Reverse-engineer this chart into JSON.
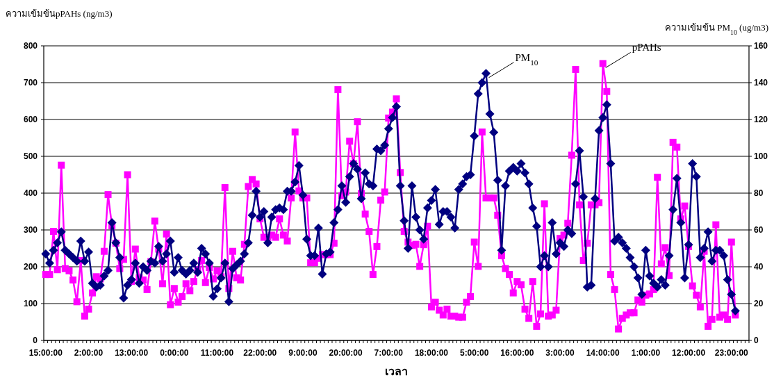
{
  "chart_data": {
    "type": "line",
    "ylabel": "ความเข้มข้นpPAHs (ng/m3)",
    "y2label": "ความเข้มข้น PM$_{10}$ (ug/m3)",
    "xlabel": "เวลา",
    "categories": [
      "15:00:00",
      null,
      null,
      null,
      null,
      null,
      null,
      null,
      null,
      null,
      null,
      "2:00:00",
      null,
      null,
      null,
      null,
      null,
      null,
      null,
      null,
      null,
      null,
      "13:00:00",
      null,
      null,
      null,
      null,
      null,
      null,
      null,
      null,
      null,
      null,
      "0:00:00",
      null,
      null,
      null,
      null,
      null,
      null,
      null,
      null,
      null,
      null,
      "11:00:00",
      null,
      null,
      null,
      null,
      null,
      null,
      null,
      null,
      null,
      null,
      "22:00:00",
      null,
      null,
      null,
      null,
      null,
      null,
      null,
      null,
      null,
      null,
      "9:00:00",
      null,
      null,
      null,
      null,
      null,
      null,
      null,
      null,
      null,
      null,
      "20:00:00",
      null,
      null,
      null,
      null,
      null,
      null,
      null,
      null,
      null,
      null,
      "7:00:00",
      null,
      null,
      null,
      null,
      null,
      null,
      null,
      null,
      null,
      null,
      "18:00:00",
      null,
      null,
      null,
      null,
      null,
      null,
      null,
      null,
      null,
      null,
      "5:00:00",
      null,
      null,
      null,
      null,
      null,
      null,
      null,
      null,
      null,
      null,
      "16:00:00",
      null,
      null,
      null,
      null,
      null,
      null,
      null,
      null,
      null,
      null,
      "3:00:00",
      null,
      null,
      null,
      null,
      null,
      null,
      null,
      null,
      null,
      null,
      "14:00:00",
      null,
      null,
      null,
      null,
      null,
      null,
      null,
      null,
      null,
      null,
      "1:00:00",
      null,
      null,
      null,
      null,
      null,
      null,
      null,
      null,
      null,
      null,
      "12:00:00",
      null,
      null,
      null,
      null,
      null,
      null,
      null,
      null,
      null,
      null,
      "23:00:00",
      null,
      null,
      null,
      null
    ],
    "series": [
      {
        "name": "pPAHs",
        "color": "#ff00ff",
        "marker": "square",
        "values": [
          179,
          179,
          296,
          192,
          476,
          195,
          189,
          164,
          105,
          217,
          66,
          85,
          129,
          173,
          167,
          242,
          396,
          311,
          264,
          195,
          220,
          450,
          160,
          248,
          170,
          164,
          138,
          214,
          324,
          248,
          154,
          289,
          97,
          141,
          104,
          119,
          154,
          135,
          160,
          192,
          217,
          157,
          198,
          167,
          189,
          173,
          415,
          141,
          242,
          170,
          164,
          261,
          418,
          437,
          425,
          330,
          280,
          280,
          286,
          280,
          330,
          286,
          270,
          387,
          566,
          406,
          387,
          387,
          211,
          211,
          223,
          233,
          233,
          233,
          264,
          681,
          393,
          403,
          541,
          480,
          594,
          399,
          343,
          296,
          179,
          255,
          381,
          403,
          604,
          620,
          656,
          456,
          296,
          267,
          258,
          261,
          201,
          260,
          310,
          91,
          104,
          82,
          69,
          85,
          66,
          66,
          63,
          63,
          104,
          119,
          267,
          201,
          566,
          387,
          387,
          387,
          340,
          230,
          195,
          179,
          129,
          160,
          151,
          85,
          60,
          160,
          38,
          72,
          371,
          66,
          69,
          82,
          277,
          286,
          318,
          503,
          736,
          368,
          217,
          264,
          368,
          368,
          374,
          752,
          676,
          179,
          138,
          31,
          60,
          69,
          75,
          75,
          110,
          104,
          123,
          126,
          138,
          443,
          208,
          252,
          176,
          538,
          525,
          330,
          365,
          255,
          148,
          123,
          91,
          242,
          38,
          57,
          314,
          63,
          69,
          57,
          267,
          69,
          null,
          null,
          null
        ]
      },
      {
        "name": "PM$_{10}$",
        "color": "#000080",
        "marker": "diamond",
        "axis": "y2",
        "values": [
          47,
          42,
          49,
          53,
          59,
          49,
          47,
          45,
          43,
          54,
          43,
          48,
          31,
          29,
          30,
          35,
          38,
          64,
          53,
          45,
          23,
          30,
          33,
          42,
          31,
          40,
          38,
          43,
          42,
          51,
          43,
          47,
          54,
          37,
          45,
          38,
          36,
          38,
          42,
          37,
          50,
          47,
          42,
          24,
          28,
          34,
          42,
          21,
          39,
          41,
          43,
          47,
          53,
          68,
          81,
          67,
          70,
          53,
          67,
          71,
          72,
          71,
          81,
          81,
          86,
          95,
          79,
          55,
          46,
          46,
          61,
          36,
          47,
          48,
          64,
          71,
          84,
          75,
          89,
          96,
          93,
          77,
          91,
          85,
          84,
          104,
          103,
          106,
          115,
          121,
          127,
          84,
          65,
          50,
          84,
          67,
          60,
          55,
          72,
          76,
          82,
          63,
          70,
          70,
          67,
          61,
          82,
          85,
          89,
          90,
          111,
          134,
          140,
          145,
          123,
          113,
          87,
          49,
          84,
          92,
          94,
          92,
          96,
          91,
          85,
          72,
          62,
          40,
          46,
          40,
          64,
          47,
          53,
          51,
          60,
          58,
          85,
          103,
          78,
          29,
          30,
          77,
          114,
          121,
          128,
          96,
          54,
          56,
          53,
          50,
          45,
          40,
          34,
          25,
          49,
          35,
          31,
          29,
          33,
          30,
          46,
          71,
          88,
          64,
          34,
          52,
          96,
          89,
          45,
          50,
          59,
          43,
          49,
          49,
          46,
          33,
          25,
          16,
          null,
          null,
          null
        ]
      }
    ],
    "ylim": [
      0,
      800
    ],
    "yticks": [
      0,
      100,
      200,
      300,
      400,
      500,
      600,
      700,
      800
    ],
    "y2lim": [
      0,
      160
    ],
    "y2ticks": [
      0,
      20,
      40,
      60,
      80,
      100,
      120,
      140,
      160
    ],
    "grid": "y"
  }
}
